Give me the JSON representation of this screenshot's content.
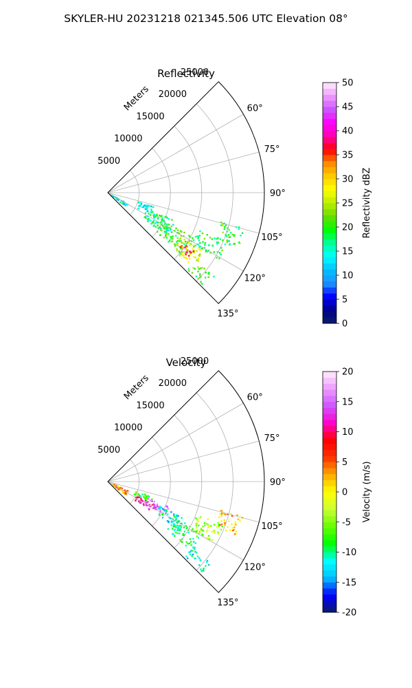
{
  "figure": {
    "title": "SKYLER-HU  20231218  021345.506 UTC Elevation 08°"
  },
  "chart_data": [
    {
      "type": "polar_sector_ppi",
      "title": "Reflectivity",
      "range_label": "Meters",
      "range_ticks": [
        "5000",
        "10000",
        "15000",
        "20000",
        "25000"
      ],
      "range_tick_values": [
        5000,
        10000,
        15000,
        20000,
        25000
      ],
      "range_max": 25000,
      "azimuth_ticks": [
        "60°",
        "75°",
        "90°",
        "105°",
        "120°",
        "135°"
      ],
      "azimuth_tick_values": [
        60,
        75,
        90,
        105,
        120,
        135
      ],
      "azimuth_range": [
        45,
        135
      ],
      "grid": true,
      "colorbar": {
        "label": "Reflectivity dBZ",
        "ticks": [
          "0",
          "5",
          "10",
          "15",
          "20",
          "25",
          "30",
          "35",
          "40",
          "45",
          "50"
        ],
        "tick_values": [
          0,
          5,
          10,
          15,
          20,
          25,
          30,
          35,
          40,
          45,
          50
        ],
        "range": [
          0,
          50
        ]
      },
      "echo_regions": [
        {
          "az": [
            118,
            128
          ],
          "r": [
            500,
            3500
          ],
          "value": 14
        },
        {
          "az": [
            106,
            117
          ],
          "r": [
            5000,
            7500
          ],
          "value": 13
        },
        {
          "az": [
            112,
            126
          ],
          "r": [
            6500,
            11500
          ],
          "value": 17
        },
        {
          "az": [
            117,
            130
          ],
          "r": [
            9500,
            15500
          ],
          "value": 20
        },
        {
          "az": [
            121,
            131
          ],
          "r": [
            13500,
            18500
          ],
          "value": 26
        },
        {
          "az": [
            124,
            129
          ],
          "r": [
            14000,
            16500
          ],
          "value": 36
        },
        {
          "az": [
            112,
            121
          ],
          "r": [
            15500,
            20500
          ],
          "value": 19
        },
        {
          "az": [
            104,
            113
          ],
          "r": [
            18500,
            22500
          ],
          "value": 20
        },
        {
          "az": [
            128,
            134
          ],
          "r": [
            17500,
            21500
          ],
          "value": 21
        }
      ]
    },
    {
      "type": "polar_sector_ppi",
      "title": "Velocity",
      "range_label": "Meters",
      "range_ticks": [
        "5000",
        "10000",
        "15000",
        "20000",
        "25000"
      ],
      "range_tick_values": [
        5000,
        10000,
        15000,
        20000,
        25000
      ],
      "range_max": 25000,
      "azimuth_ticks": [
        "60°",
        "75°",
        "90°",
        "105°",
        "120°",
        "135°"
      ],
      "azimuth_tick_values": [
        60,
        75,
        90,
        105,
        120,
        135
      ],
      "azimuth_range": [
        45,
        135
      ],
      "grid": true,
      "colorbar": {
        "label": "Velocity (m/s)",
        "ticks": [
          "-20",
          "-15",
          "-10",
          "-5",
          "0",
          "5",
          "10",
          "15",
          "20"
        ],
        "tick_values": [
          -20,
          -15,
          -10,
          -5,
          0,
          5,
          10,
          15,
          20
        ],
        "range": [
          -20,
          20
        ]
      },
      "echo_regions": [
        {
          "az": [
            112,
            126
          ],
          "r": [
            500,
            3500
          ],
          "value": 3
        },
        {
          "az": [
            108,
            116
          ],
          "r": [
            4500,
            7500
          ],
          "value": -8
        },
        {
          "az": [
            116,
            124
          ],
          "r": [
            5000,
            8500
          ],
          "value": 11
        },
        {
          "az": [
            112,
            120
          ],
          "r": [
            6500,
            10500
          ],
          "value": 16
        },
        {
          "az": [
            115,
            124
          ],
          "r": [
            9000,
            13500
          ],
          "value": -12
        },
        {
          "az": [
            118,
            130
          ],
          "r": [
            12000,
            17500
          ],
          "value": -9
        },
        {
          "az": [
            110,
            120
          ],
          "r": [
            14500,
            19500
          ],
          "value": -4
        },
        {
          "az": [
            104,
            113
          ],
          "r": [
            18500,
            22500
          ],
          "value": 2
        },
        {
          "az": [
            128,
            134
          ],
          "r": [
            17000,
            21000
          ],
          "value": -12
        }
      ]
    }
  ],
  "colors": {
    "reflectivity_stops": [
      "#0b1c6a",
      "#00008b",
      "#0000ff",
      "#1e90ff",
      "#00bfff",
      "#00ffff",
      "#00ff99",
      "#00ff00",
      "#66dd00",
      "#bbee00",
      "#ffff00",
      "#ffcc00",
      "#ff8800",
      "#ff0000",
      "#ff00aa",
      "#ff00ff",
      "#cc55ff",
      "#ee99ff",
      "#ffeeff"
    ],
    "velocity_stops": [
      "#0b1c6a",
      "#0000ff",
      "#00bfff",
      "#00ffff",
      "#00ff00",
      "#66ff00",
      "#ccff33",
      "#ffff00",
      "#ffaa00",
      "#ff3300",
      "#ff0000",
      "#ff00cc",
      "#cc55ff",
      "#ee99ff",
      "#ffeeff"
    ]
  }
}
